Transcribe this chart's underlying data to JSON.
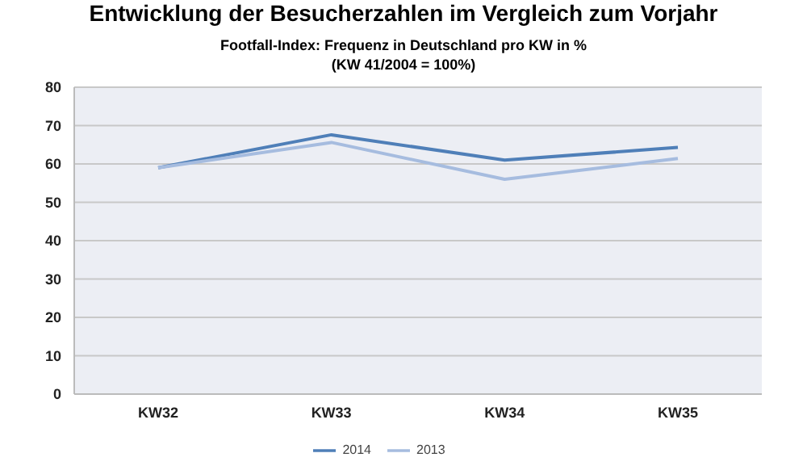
{
  "chart_data": {
    "type": "line",
    "title": "Entwicklung der Besucherzahlen im Vergleich zum Vorjahr",
    "subtitle": "Footfall-Index: Frequenz in Deutschland pro KW in %\n(KW 41/2004 = 100%)",
    "categories": [
      "KW32",
      "KW33",
      "KW34",
      "KW35"
    ],
    "series": [
      {
        "name": "2014",
        "color": "#4f7fb8",
        "values": [
          59,
          67.6,
          61,
          64.3
        ]
      },
      {
        "name": "2013",
        "color": "#a6bcdf",
        "values": [
          59,
          65.6,
          56,
          61.4
        ]
      }
    ],
    "ylim": [
      0,
      80
    ],
    "yticks": [
      0,
      10,
      20,
      30,
      40,
      50,
      60,
      70,
      80
    ],
    "grid": "y",
    "legend": "bottom",
    "marker": "none",
    "line_style": "solid"
  }
}
